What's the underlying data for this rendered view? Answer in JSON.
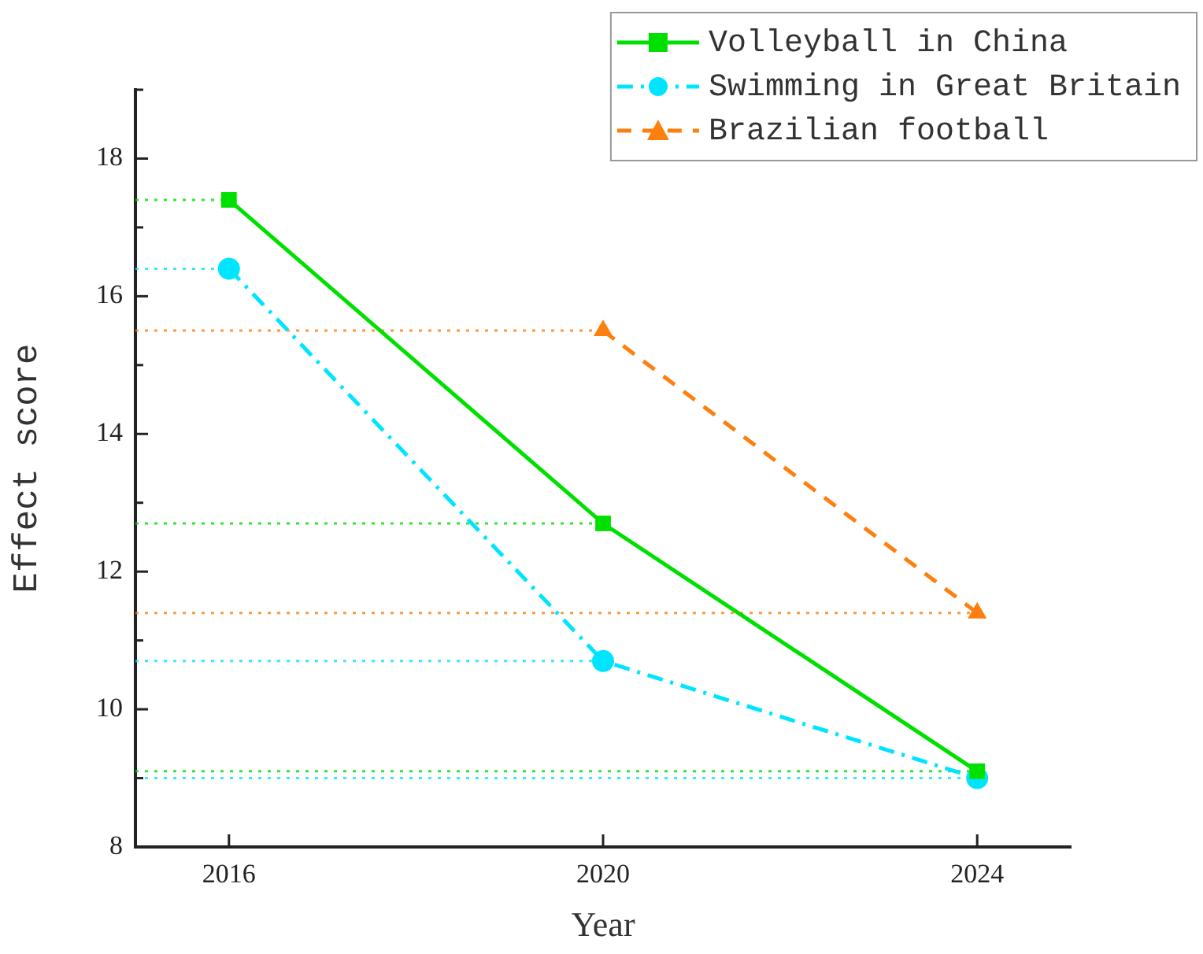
{
  "chart_data": {
    "type": "line",
    "xlabel": "Year",
    "ylabel": "Effect score",
    "x": [
      2016,
      2020,
      2024
    ],
    "xlim": [
      2015,
      2025
    ],
    "xticks": [
      2016,
      2020,
      2024
    ],
    "ylim": [
      8,
      19
    ],
    "yticks": [
      8,
      10,
      12,
      14,
      16,
      18
    ],
    "grid": false,
    "legend": "top right",
    "series": [
      {
        "name": "Volleyball in China",
        "color": "#00e000",
        "marker": "square",
        "line_style": "solid",
        "values": [
          17.4,
          12.7,
          9.1
        ]
      },
      {
        "name": "Swimming in Great Britain",
        "color": "#00e5ff",
        "marker": "circle",
        "line_style": "dashdot",
        "values": [
          16.4,
          10.7,
          9.0
        ]
      },
      {
        "name": "Brazilian football",
        "color": "#ff7f0e",
        "marker": "triangle",
        "line_style": "dashed",
        "values": [
          null,
          15.5,
          11.4
        ]
      }
    ],
    "ref_lines": [
      {
        "axis": "y",
        "value": 17.4,
        "color": "#00e000",
        "line_style": "dotted"
      },
      {
        "axis": "y",
        "value": 12.7,
        "color": "#00e000",
        "line_style": "dotted"
      },
      {
        "axis": "y",
        "value": 9.1,
        "color": "#00e000",
        "line_style": "dotted"
      },
      {
        "axis": "y",
        "value": 16.4,
        "color": "#00e5ff",
        "line_style": "dotted"
      },
      {
        "axis": "y",
        "value": 10.7,
        "color": "#00e5ff",
        "line_style": "dotted"
      },
      {
        "axis": "y",
        "value": 9.0,
        "color": "#00e5ff",
        "line_style": "dotted"
      },
      {
        "axis": "y",
        "value": 15.5,
        "color": "#ff7f0e",
        "line_style": "dotted"
      },
      {
        "axis": "y",
        "value": 11.4,
        "color": "#ff7f0e",
        "line_style": "dotted"
      }
    ]
  }
}
